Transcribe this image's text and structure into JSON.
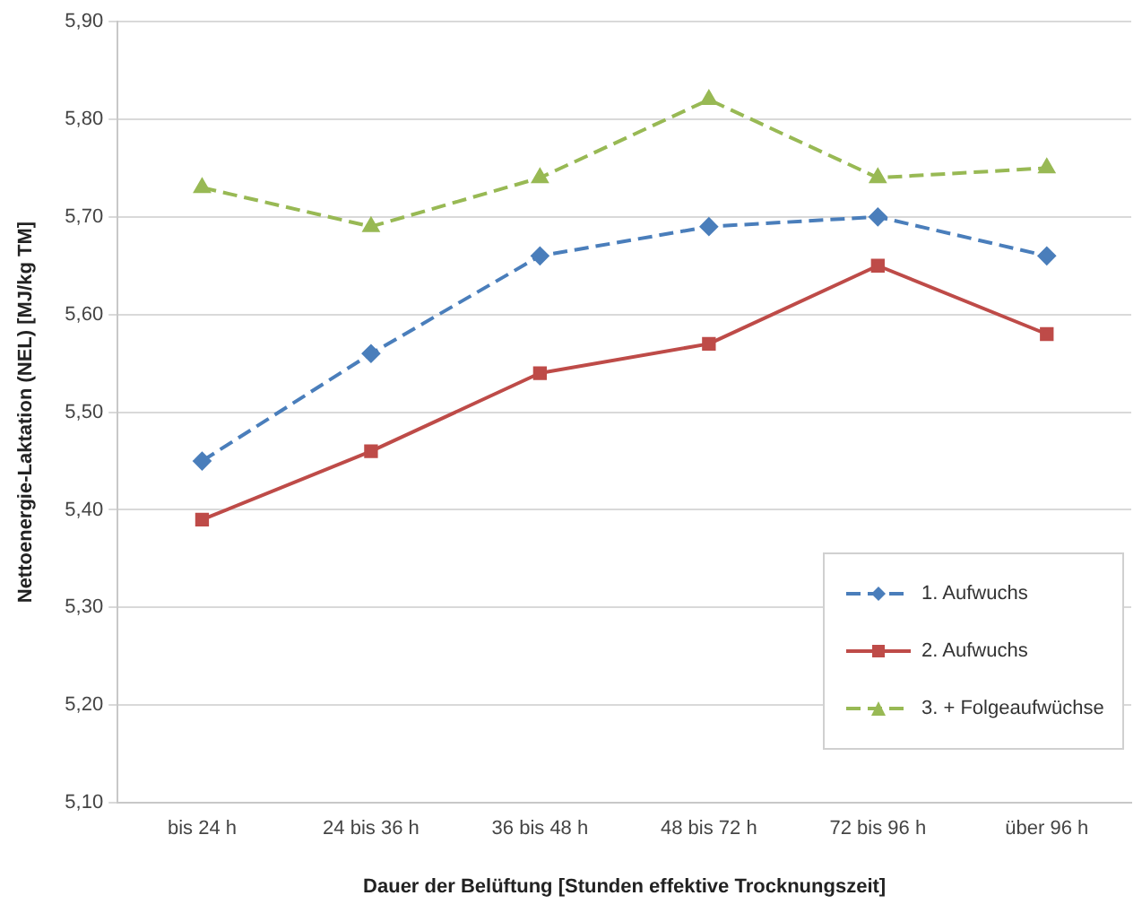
{
  "chart_data": {
    "type": "line",
    "xlabel": "Dauer der Belüftung [Stunden effektive Trocknungszeit]",
    "ylabel": "Nettoenergie-Laktation (NEL) [MJ/kg TM]",
    "categories": [
      "bis 24 h",
      "24 bis 36 h",
      "36 bis 48 h",
      "48 bis 72 h",
      "72 bis 96 h",
      "über 96 h"
    ],
    "series": [
      {
        "name": "1. Aufwuchs",
        "color": "#4a7ebb",
        "marker": "diamond",
        "line_style": "dashed",
        "values": [
          5.45,
          5.56,
          5.66,
          5.69,
          5.7,
          5.66
        ]
      },
      {
        "name": "2. Aufwuchs",
        "color": "#be4b48",
        "marker": "square",
        "line_style": "solid",
        "values": [
          5.39,
          5.46,
          5.54,
          5.57,
          5.65,
          5.58
        ]
      },
      {
        "name": "3. + Folgeaufwüchse",
        "color": "#98b954",
        "marker": "triangle",
        "line_style": "dashed",
        "values": [
          5.73,
          5.69,
          5.74,
          5.82,
          5.74,
          5.75
        ]
      }
    ],
    "ylim": [
      5.1,
      5.9
    ],
    "yticks": [
      {
        "value": 5.1,
        "label": "5,10"
      },
      {
        "value": 5.2,
        "label": "5,20"
      },
      {
        "value": 5.3,
        "label": "5,30"
      },
      {
        "value": 5.4,
        "label": "5,40"
      },
      {
        "value": 5.5,
        "label": "5,50"
      },
      {
        "value": 5.6,
        "label": "5,60"
      },
      {
        "value": 5.7,
        "label": "5,70"
      },
      {
        "value": 5.8,
        "label": "5,80"
      },
      {
        "value": 5.9,
        "label": "5,90"
      }
    ],
    "grid": "y",
    "legend": "bottom right"
  }
}
